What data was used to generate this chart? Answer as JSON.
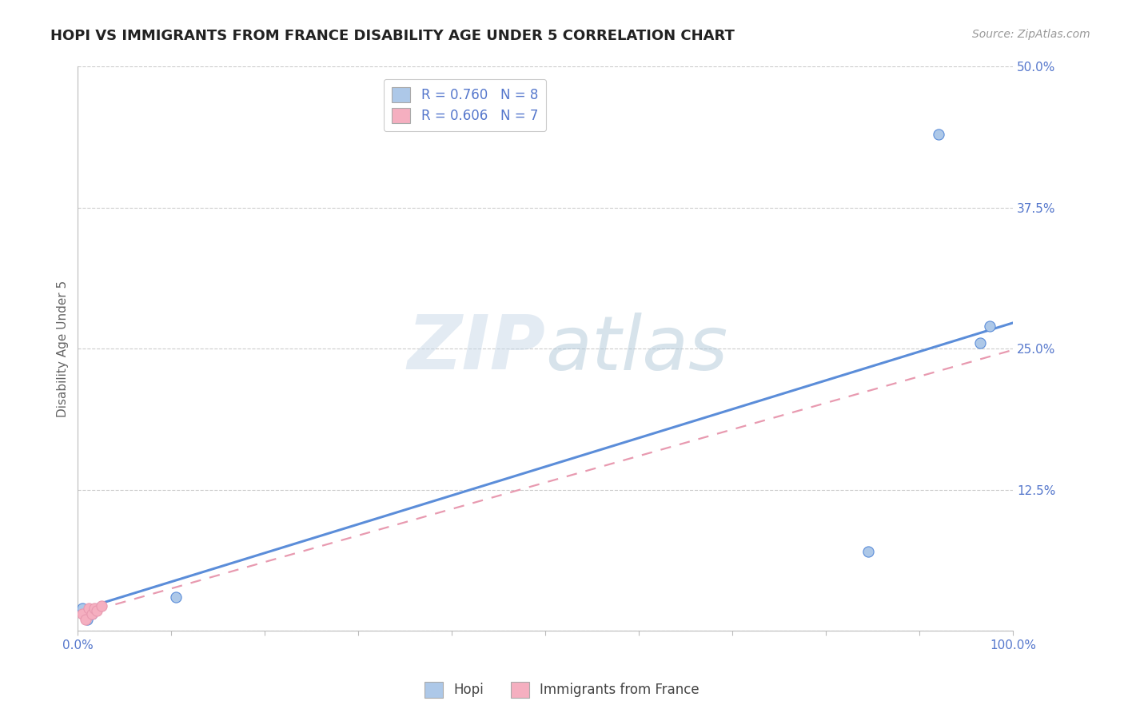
{
  "title": "HOPI VS IMMIGRANTS FROM FRANCE DISABILITY AGE UNDER 5 CORRELATION CHART",
  "source": "Source: ZipAtlas.com",
  "ylabel": "Disability Age Under 5",
  "xlim": [
    0,
    1.0
  ],
  "ylim": [
    0,
    0.5
  ],
  "xticks": [
    0.0,
    0.1,
    0.2,
    0.3,
    0.4,
    0.5,
    0.6,
    0.7,
    0.8,
    0.9,
    1.0
  ],
  "yticks": [
    0.0,
    0.125,
    0.25,
    0.375,
    0.5
  ],
  "ytick_labels": [
    "",
    "12.5%",
    "25.0%",
    "37.5%",
    "50.0%"
  ],
  "hopi_x": [
    0.005,
    0.01,
    0.015,
    0.105,
    0.845,
    0.965,
    0.975,
    0.92
  ],
  "hopi_y": [
    0.02,
    0.01,
    0.015,
    0.03,
    0.07,
    0.255,
    0.27,
    0.44
  ],
  "france_x": [
    0.005,
    0.008,
    0.012,
    0.015,
    0.018,
    0.02,
    0.025
  ],
  "france_y": [
    0.015,
    0.01,
    0.02,
    0.015,
    0.02,
    0.018,
    0.022
  ],
  "hopi_R": 0.76,
  "hopi_N": 8,
  "france_R": 0.606,
  "france_N": 7,
  "hopi_color": "#adc8e8",
  "france_color": "#f5afc0",
  "hopi_line_color": "#5b8dd9",
  "france_line_color": "#e89ab0",
  "hopi_line_intercept": 0.018,
  "hopi_line_slope": 0.255,
  "france_line_intercept": 0.014,
  "france_line_slope": 0.235,
  "watermark_color": "#c8d8e8",
  "watermark_alpha": 0.5,
  "grid_color": "#cccccc",
  "spine_color": "#bbbbbb",
  "title_color": "#222222",
  "source_color": "#999999",
  "label_color": "#5577cc",
  "tick_label_color": "#5577cc"
}
